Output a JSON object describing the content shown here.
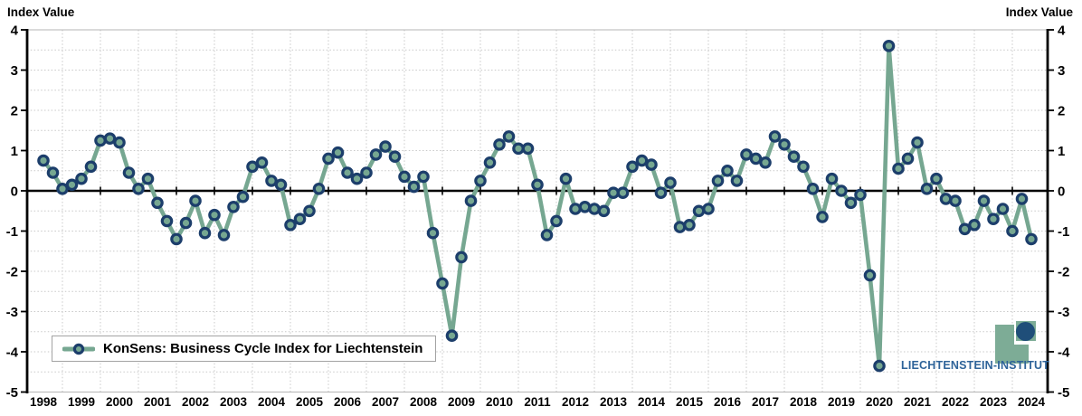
{
  "header": {
    "left_axis_title": "Index Value",
    "right_axis_title": "Index Value"
  },
  "legend": {
    "label": "KonSens: Business Cycle Index for Liechtenstein"
  },
  "logo": {
    "text": "LIECHTENSTEIN-INSTITUT"
  },
  "colors": {
    "line": "#76a791",
    "marker_fill": "#76a791",
    "marker_stroke": "#1c3e6b",
    "axis": "#000000",
    "grid": "#c9c9c9",
    "border": "#b5b5b5",
    "logo_teal": "#7dac96",
    "logo_navy": "#1f4e79",
    "logo_text_blue": "#2e6399"
  },
  "chart_data": {
    "type": "line",
    "title": "",
    "ylabel_left": "Index Value",
    "ylabel_right": "Index Value",
    "ylim": [
      -5,
      4
    ],
    "y_ticks": [
      4,
      3,
      2,
      1,
      0,
      -1,
      -2,
      -3,
      -4,
      -5
    ],
    "x_tick_labels": [
      "1998",
      "1999",
      "2000",
      "2001",
      "2002",
      "2003",
      "2004",
      "2005",
      "2006",
      "2007",
      "2008",
      "2009",
      "2010",
      "2011",
      "2012",
      "2013",
      "2014",
      "2015",
      "2016",
      "2017",
      "2018",
      "2019",
      "2020",
      "2021",
      "2022",
      "2023",
      "2024"
    ],
    "grid": "dotted gray; horizontal every 0.5, vertical at year boundaries",
    "legend_position": "bottom-left",
    "frequency": "quarterly",
    "series": [
      {
        "name": "KonSens: Business Cycle Index for Liechtenstein",
        "start": "1998-Q1",
        "end": "2024-Q1",
        "values": [
          0.75,
          0.45,
          0.05,
          0.15,
          0.3,
          0.6,
          1.25,
          1.3,
          1.2,
          0.45,
          0.05,
          0.3,
          -0.3,
          -0.75,
          -1.2,
          -0.8,
          -0.25,
          -1.05,
          -0.6,
          -1.1,
          -0.4,
          -0.15,
          0.6,
          0.7,
          0.25,
          0.15,
          -0.85,
          -0.7,
          -0.5,
          0.05,
          0.8,
          0.95,
          0.45,
          0.3,
          0.45,
          0.9,
          1.1,
          0.85,
          0.35,
          0.1,
          0.35,
          -1.05,
          -2.3,
          -3.6,
          -1.65,
          -0.25,
          0.25,
          0.7,
          1.15,
          1.35,
          1.05,
          1.05,
          0.15,
          -1.1,
          -0.75,
          0.3,
          -0.45,
          -0.4,
          -0.45,
          -0.5,
          -0.05,
          -0.05,
          0.6,
          0.75,
          0.65,
          -0.05,
          0.2,
          -0.9,
          -0.85,
          -0.5,
          -0.45,
          0.25,
          0.5,
          0.25,
          0.9,
          0.8,
          0.7,
          1.35,
          1.15,
          0.85,
          0.6,
          0.05,
          -0.65,
          0.3,
          0.0,
          -0.3,
          -0.1,
          -2.1,
          -4.35,
          3.6,
          0.55,
          0.8,
          1.2,
          0.05,
          0.3,
          -0.2,
          -0.25,
          -0.95,
          -0.85,
          -0.25,
          -0.7,
          -0.45,
          -1.0,
          -0.2,
          -1.2
        ]
      }
    ]
  }
}
